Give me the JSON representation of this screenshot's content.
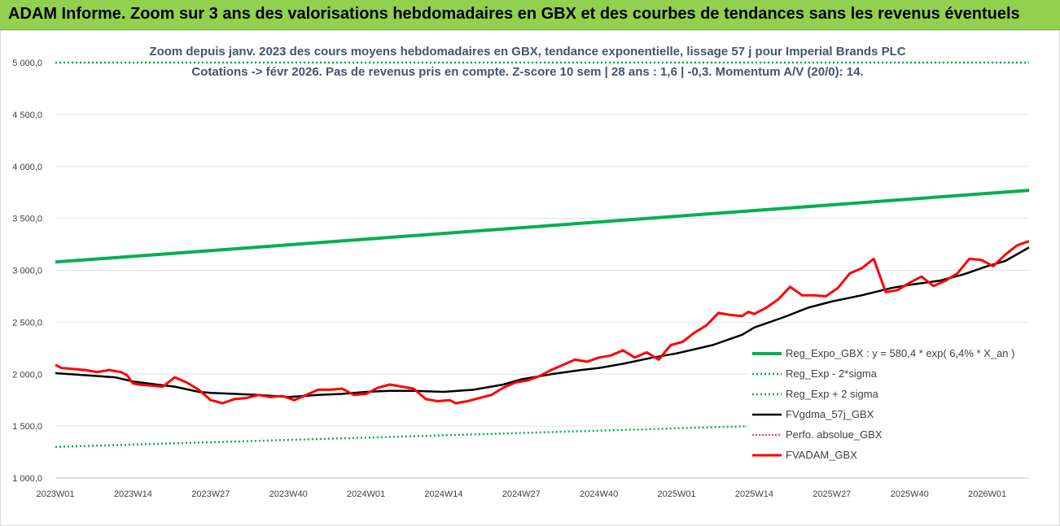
{
  "header": {
    "title": "ADAM Informe. Zoom sur 3 ans des valorisations hebdomadaires en GBX et des courbes de tendances sans les revenus éventuels"
  },
  "colors": {
    "banner": "#92d050",
    "reg_expo": "#00b050",
    "fvgdma": "#000000",
    "fvadam": "#ff0000",
    "perfo": "#ff0000"
  },
  "chart_data": {
    "type": "line",
    "title": "Zoom depuis janv. 2023 des cours moyens hebdomadaires en GBX, tendance exponentielle, lissage 57 j pour Imperial Brands PLC",
    "subtitle": "Cotations -> févr 2026. Pas de revenus pris en compte. Z-score 10 sem | 28 ans : 1,6 | -0,3. Momentum A/V (20/0): 14.",
    "xlabel": "",
    "ylabel": "",
    "ylim": [
      1000,
      5000
    ],
    "yticks": [
      1000,
      1500,
      2000,
      2500,
      3000,
      3500,
      4000,
      4500,
      5000
    ],
    "ytick_labels": [
      "1 000,0",
      "1 500,0",
      "2 000,0",
      "2 500,0",
      "3 000,0",
      "3 500,0",
      "4 000,0",
      "4 500,0",
      "5 000,0"
    ],
    "x_range": [
      0,
      163
    ],
    "xtick_positions": [
      0,
      13,
      26,
      39,
      52,
      65,
      78,
      91,
      104,
      117,
      130,
      143,
      156
    ],
    "xtick_labels": [
      "2023W01",
      "2023W14",
      "2023W27",
      "2023W40",
      "2024W01",
      "2024W14",
      "2024W27",
      "2024W40",
      "2025W01",
      "2025W14",
      "2025W27",
      "2025W40",
      "2026W01"
    ],
    "grid": "horizontal",
    "legend_position": "bottom-right",
    "legend": [
      {
        "key": "reg_expo",
        "label": "Reg_Expo_GBX : y = 580,4 * exp( 6,4% *   X_an )"
      },
      {
        "key": "reg_lo",
        "label": "Reg_Exp - 2*sigma"
      },
      {
        "key": "reg_hi",
        "label": "Reg_Exp + 2 sigma"
      },
      {
        "key": "fvgdma",
        "label": "FVgdma_57j_GBX"
      },
      {
        "key": "perfo",
        "label": "Perfo. absolue_GBX"
      },
      {
        "key": "fvadam",
        "label": "FVADAM_GBX"
      }
    ],
    "series": [
      {
        "key": "reg_expo",
        "name": "Reg_Expo_GBX : y = 580,4 * exp( 6,4% *   X_an )",
        "x": [
          0,
          163
        ],
        "values": [
          3080,
          3770
        ]
      },
      {
        "key": "reg_hi",
        "name": "Reg_Exp + 2 sigma",
        "x": [
          0,
          163
        ],
        "values": [
          5000,
          5000
        ]
      },
      {
        "key": "reg_lo",
        "name": "Reg_Exp - 2*sigma",
        "x": [
          0,
          163
        ],
        "values": [
          1300,
          1580
        ]
      },
      {
        "key": "fvgdma",
        "name": "FVgdma_57j_GBX",
        "x": [
          0,
          5,
          10,
          13,
          17,
          20,
          24,
          26,
          30,
          34,
          39,
          44,
          48,
          52,
          56,
          60,
          65,
          70,
          75,
          78,
          83,
          88,
          91,
          95,
          100,
          104,
          110,
          115,
          117,
          122,
          126,
          130,
          135,
          140,
          143,
          148,
          152,
          156,
          159,
          163
        ],
        "values": [
          2010,
          1990,
          1970,
          1930,
          1900,
          1880,
          1830,
          1820,
          1810,
          1800,
          1780,
          1800,
          1810,
          1830,
          1840,
          1840,
          1830,
          1850,
          1900,
          1950,
          2000,
          2040,
          2060,
          2100,
          2160,
          2200,
          2280,
          2380,
          2450,
          2550,
          2640,
          2700,
          2760,
          2830,
          2860,
          2900,
          2960,
          3040,
          3090,
          3220
        ]
      },
      {
        "key": "fvadam",
        "name": "FVADAM_GBX",
        "x": [
          0,
          1,
          3,
          5,
          7,
          9,
          11,
          12,
          13,
          14,
          16,
          18,
          20,
          22,
          24,
          26,
          28,
          30,
          32,
          34,
          36,
          38,
          40,
          42,
          44,
          46,
          48,
          50,
          52,
          54,
          56,
          58,
          60,
          62,
          64,
          66,
          67,
          69,
          71,
          73,
          75,
          77,
          79,
          81,
          83,
          85,
          87,
          89,
          91,
          93,
          95,
          97,
          99,
          101,
          103,
          105,
          107,
          109,
          111,
          113,
          115,
          116,
          117,
          119,
          121,
          123,
          125,
          127,
          129,
          131,
          133,
          135,
          137,
          139,
          141,
          143,
          145,
          147,
          149,
          151,
          153,
          155,
          157,
          159,
          161,
          163
        ],
        "values": [
          2090,
          2060,
          2050,
          2040,
          2020,
          2040,
          2020,
          1990,
          1910,
          1900,
          1890,
          1880,
          1970,
          1920,
          1850,
          1750,
          1720,
          1760,
          1770,
          1800,
          1780,
          1790,
          1750,
          1800,
          1850,
          1850,
          1860,
          1800,
          1810,
          1870,
          1900,
          1880,
          1860,
          1760,
          1740,
          1750,
          1720,
          1740,
          1770,
          1800,
          1870,
          1920,
          1940,
          1980,
          2040,
          2090,
          2140,
          2120,
          2160,
          2180,
          2230,
          2160,
          2210,
          2140,
          2280,
          2310,
          2400,
          2470,
          2590,
          2570,
          2560,
          2600,
          2580,
          2640,
          2720,
          2840,
          2760,
          2760,
          2750,
          2830,
          2970,
          3020,
          3110,
          2790,
          2810,
          2880,
          2940,
          2850,
          2900,
          2970,
          3110,
          3100,
          3040,
          3150,
          3240,
          3280
        ]
      }
    ]
  }
}
